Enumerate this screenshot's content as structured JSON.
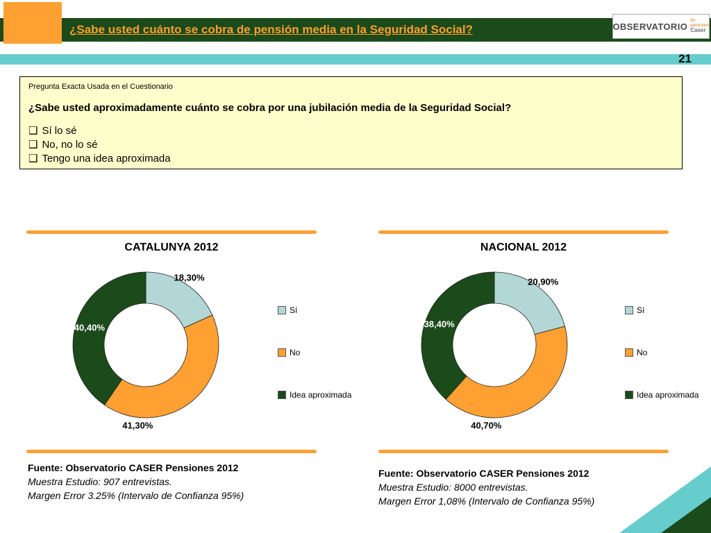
{
  "header": {
    "title": "¿Sabe usted cuánto se cobra de pensión media en la Seguridad Social?",
    "page_number": "21",
    "logo": {
      "main": "OBSERVATORIO",
      "sub_top": "de pensiones",
      "sub_bottom": "Caser"
    }
  },
  "question_box": {
    "caption": "Pregunta Exacta Usada en el Cuestionario",
    "question": "¿Sabe usted aproximadamente cuánto se cobra por una jubilación media de la Seguridad Social?",
    "checkbox_glyph": "❑",
    "options": [
      "Sí lo sé",
      "No, no lo sé",
      "Tengo una idea aproximada"
    ]
  },
  "colors": {
    "dark_green": "#1B4A1B",
    "orange": "#FFA033",
    "teal": "#66CCCC",
    "pale_teal": "#B3D6D6",
    "question_box_bg": "#FFFFCC"
  },
  "chart_data": [
    {
      "type": "pie",
      "subtype": "donut",
      "title": "CATALUNYA 2012",
      "labels": [
        "Sí",
        "No",
        "Idea aproximada"
      ],
      "values": [
        18.3,
        41.3,
        40.4
      ],
      "value_labels": [
        "18,30%",
        "41,30%",
        "40,40%"
      ],
      "colors": [
        "#B3D6D6",
        "#FFA033",
        "#1B4A1B"
      ],
      "legend_position": "right"
    },
    {
      "type": "pie",
      "subtype": "donut",
      "title": "NACIONAL 2012",
      "labels": [
        "Sí",
        "No",
        "Idea aproximada"
      ],
      "values": [
        20.9,
        40.7,
        38.4
      ],
      "value_labels": [
        "20,90%",
        "40,70%",
        "38,40%"
      ],
      "colors": [
        "#B3D6D6",
        "#FFA033",
        "#1B4A1B"
      ],
      "legend_position": "right"
    }
  ],
  "sources": {
    "left": {
      "line1": "Fuente: Observatorio CASER Pensiones 2012",
      "line2": "Muestra Estudio: 907 entrevistas.",
      "line3": "Margen Error 3.25% (Intervalo de Confianza 95%)"
    },
    "right": {
      "line1": "Fuente: Observatorio CASER Pensiones 2012",
      "line2": "Muestra Estudio: 8000 entrevistas.",
      "line3": "Margen Error 1,08% (Intervalo de Confianza 95%)"
    }
  }
}
